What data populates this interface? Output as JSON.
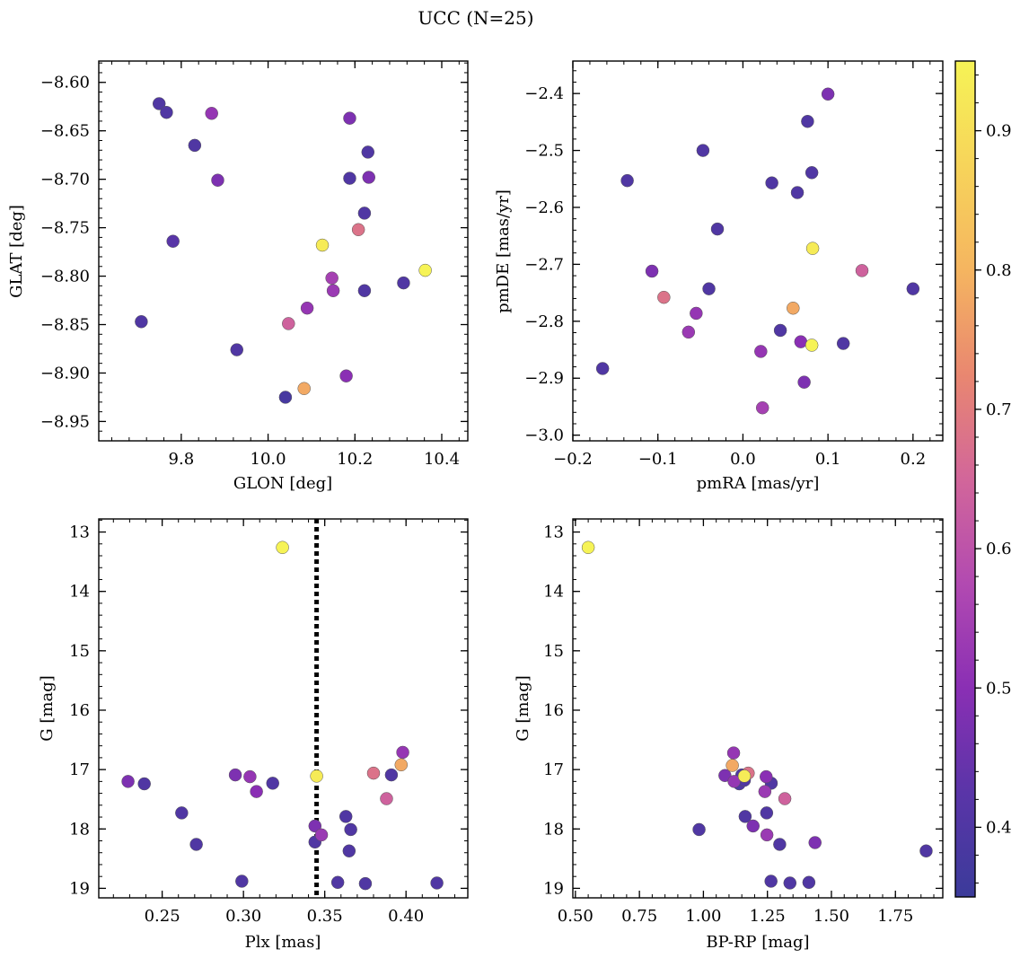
{
  "figure": {
    "title": "UCC (N=25)"
  },
  "colorbar": {
    "min": 0.35,
    "max": 0.95,
    "ticks": [
      "0.4",
      "0.5",
      "0.6",
      "0.7",
      "0.8",
      "0.9"
    ],
    "stops": [
      "#3b3b9a",
      "#5a35a8",
      "#8a2fb4",
      "#b24ab1",
      "#d2669a",
      "#e98770",
      "#f5b560",
      "#f7d45a",
      "#f6f356"
    ]
  },
  "chart_data": [
    {
      "type": "scatter",
      "id": "a",
      "xlabel": "GLON [deg]",
      "ylabel": "GLAT [deg]",
      "xlim": [
        9.61,
        10.46
      ],
      "ylim": [
        -8.97,
        -8.578
      ],
      "yinvert": false,
      "xticks": [
        "9.8",
        "10.0",
        "10.2",
        "10.4"
      ],
      "yticks": [
        "-8.60",
        "-8.65",
        "-8.70",
        "-8.75",
        "-8.80",
        "-8.85",
        "-8.90",
        "-8.95"
      ],
      "points": [
        {
          "x": 9.749,
          "y": -8.622,
          "c": 0.4
        },
        {
          "x": 9.766,
          "y": -8.631,
          "c": 0.4
        },
        {
          "x": 9.831,
          "y": -8.665,
          "c": 0.4
        },
        {
          "x": 9.87,
          "y": -8.632,
          "c": 0.52
        },
        {
          "x": 9.884,
          "y": -8.701,
          "c": 0.48
        },
        {
          "x": 9.781,
          "y": -8.764,
          "c": 0.42
        },
        {
          "x": 9.708,
          "y": -8.847,
          "c": 0.4
        },
        {
          "x": 9.928,
          "y": -8.876,
          "c": 0.4
        },
        {
          "x": 10.04,
          "y": -8.925,
          "c": 0.38
        },
        {
          "x": 10.047,
          "y": -8.849,
          "c": 0.64
        },
        {
          "x": 10.083,
          "y": -8.916,
          "c": 0.78
        },
        {
          "x": 10.09,
          "y": -8.833,
          "c": 0.52
        },
        {
          "x": 10.125,
          "y": -8.768,
          "c": 0.93
        },
        {
          "x": 10.147,
          "y": -8.802,
          "c": 0.55
        },
        {
          "x": 10.15,
          "y": -8.815,
          "c": 0.53
        },
        {
          "x": 10.18,
          "y": -8.903,
          "c": 0.5
        },
        {
          "x": 10.188,
          "y": -8.637,
          "c": 0.48
        },
        {
          "x": 10.188,
          "y": -8.699,
          "c": 0.4
        },
        {
          "x": 10.208,
          "y": -8.752,
          "c": 0.68
        },
        {
          "x": 10.222,
          "y": -8.735,
          "c": 0.4
        },
        {
          "x": 10.222,
          "y": -8.815,
          "c": 0.4
        },
        {
          "x": 10.23,
          "y": -8.672,
          "c": 0.4
        },
        {
          "x": 10.232,
          "y": -8.698,
          "c": 0.48
        },
        {
          "x": 10.312,
          "y": -8.807,
          "c": 0.4
        },
        {
          "x": 10.362,
          "y": -8.794,
          "c": 0.95
        }
      ]
    },
    {
      "type": "scatter",
      "id": "b",
      "xlabel": "pmRA [mas/yr]",
      "ylabel": "pmDE [mas/yr]",
      "xlim": [
        -0.2,
        0.235
      ],
      "ylim": [
        -3.01,
        -2.343
      ],
      "yinvert": false,
      "xticks": [
        "-0.2",
        "-0.1",
        "0.0",
        "0.1",
        "0.2"
      ],
      "yticks": [
        "-2.4",
        "-2.5",
        "-2.6",
        "-2.7",
        "-2.8",
        "-2.9",
        "-3.0"
      ],
      "points": [
        {
          "x": 0.1,
          "y": -2.401,
          "c": 0.48
        },
        {
          "x": 0.076,
          "y": -2.449,
          "c": 0.4
        },
        {
          "x": -0.047,
          "y": -2.5,
          "c": 0.4
        },
        {
          "x": -0.136,
          "y": -2.553,
          "c": 0.4
        },
        {
          "x": 0.034,
          "y": -2.557,
          "c": 0.4
        },
        {
          "x": 0.081,
          "y": -2.539,
          "c": 0.4
        },
        {
          "x": 0.064,
          "y": -2.574,
          "c": 0.4
        },
        {
          "x": -0.03,
          "y": -2.638,
          "c": 0.4
        },
        {
          "x": 0.082,
          "y": -2.672,
          "c": 0.93
        },
        {
          "x": -0.107,
          "y": -2.712,
          "c": 0.48
        },
        {
          "x": 0.14,
          "y": -2.711,
          "c": 0.64
        },
        {
          "x": -0.093,
          "y": -2.758,
          "c": 0.68
        },
        {
          "x": -0.04,
          "y": -2.743,
          "c": 0.4
        },
        {
          "x": 0.2,
          "y": -2.743,
          "c": 0.4
        },
        {
          "x": 0.059,
          "y": -2.777,
          "c": 0.78
        },
        {
          "x": -0.055,
          "y": -2.786,
          "c": 0.52
        },
        {
          "x": -0.064,
          "y": -2.819,
          "c": 0.53
        },
        {
          "x": 0.044,
          "y": -2.816,
          "c": 0.4
        },
        {
          "x": 0.068,
          "y": -2.836,
          "c": 0.5
        },
        {
          "x": 0.118,
          "y": -2.839,
          "c": 0.4
        },
        {
          "x": 0.081,
          "y": -2.842,
          "c": 0.95
        },
        {
          "x": 0.021,
          "y": -2.853,
          "c": 0.52
        },
        {
          "x": -0.165,
          "y": -2.883,
          "c": 0.4
        },
        {
          "x": 0.072,
          "y": -2.907,
          "c": 0.48
        },
        {
          "x": 0.023,
          "y": -2.952,
          "c": 0.55
        }
      ]
    },
    {
      "type": "scatter",
      "id": "c",
      "xlabel": "Plx [mas]",
      "ylabel": "G [mag]",
      "xlim": [
        0.211,
        0.438
      ],
      "ylim": [
        12.78,
        19.16
      ],
      "yinvert": true,
      "vline": 0.345,
      "xticks": [
        "0.25",
        "0.30",
        "0.35",
        "0.40"
      ],
      "yticks": [
        "13",
        "14",
        "15",
        "16",
        "17",
        "18",
        "19"
      ],
      "points": [
        {
          "x": 0.324,
          "y": 13.26,
          "c": 0.95
        },
        {
          "x": 0.229,
          "y": 17.2,
          "c": 0.48
        },
        {
          "x": 0.239,
          "y": 17.24,
          "c": 0.4
        },
        {
          "x": 0.262,
          "y": 17.73,
          "c": 0.4
        },
        {
          "x": 0.271,
          "y": 18.26,
          "c": 0.4
        },
        {
          "x": 0.295,
          "y": 17.09,
          "c": 0.48
        },
        {
          "x": 0.304,
          "y": 17.12,
          "c": 0.52
        },
        {
          "x": 0.308,
          "y": 17.37,
          "c": 0.5
        },
        {
          "x": 0.318,
          "y": 17.23,
          "c": 0.4
        },
        {
          "x": 0.299,
          "y": 18.88,
          "c": 0.4
        },
        {
          "x": 0.345,
          "y": 17.11,
          "c": 0.93
        },
        {
          "x": 0.344,
          "y": 17.95,
          "c": 0.48
        },
        {
          "x": 0.348,
          "y": 18.1,
          "c": 0.53
        },
        {
          "x": 0.344,
          "y": 18.22,
          "c": 0.4
        },
        {
          "x": 0.363,
          "y": 17.79,
          "c": 0.4
        },
        {
          "x": 0.366,
          "y": 18.01,
          "c": 0.4
        },
        {
          "x": 0.365,
          "y": 18.37,
          "c": 0.4
        },
        {
          "x": 0.358,
          "y": 18.9,
          "c": 0.4
        },
        {
          "x": 0.375,
          "y": 18.92,
          "c": 0.4
        },
        {
          "x": 0.38,
          "y": 17.06,
          "c": 0.68
        },
        {
          "x": 0.388,
          "y": 17.49,
          "c": 0.64
        },
        {
          "x": 0.391,
          "y": 17.09,
          "c": 0.4
        },
        {
          "x": 0.397,
          "y": 16.92,
          "c": 0.78
        },
        {
          "x": 0.398,
          "y": 16.71,
          "c": 0.52
        },
        {
          "x": 0.419,
          "y": 18.91,
          "c": 0.4
        }
      ]
    },
    {
      "type": "scatter",
      "id": "d",
      "xlabel": "BP-RP [mag]",
      "ylabel": "G [mag]",
      "xlim": [
        0.49,
        1.935
      ],
      "ylim": [
        12.78,
        19.16
      ],
      "yinvert": true,
      "xticks": [
        "0.50",
        "0.75",
        "1.00",
        "1.25",
        "1.50",
        "1.75"
      ],
      "yticks": [
        "13",
        "14",
        "15",
        "16",
        "17",
        "18",
        "19"
      ],
      "points": [
        {
          "x": 0.55,
          "y": 13.26,
          "c": 0.95
        },
        {
          "x": 1.118,
          "y": 16.72,
          "c": 0.52
        },
        {
          "x": 1.113,
          "y": 16.93,
          "c": 0.78
        },
        {
          "x": 1.084,
          "y": 17.1,
          "c": 0.48
        },
        {
          "x": 1.15,
          "y": 17.09,
          "c": 0.4
        },
        {
          "x": 1.175,
          "y": 17.06,
          "c": 0.68
        },
        {
          "x": 1.12,
          "y": 17.2,
          "c": 0.52
        },
        {
          "x": 1.14,
          "y": 17.24,
          "c": 0.4
        },
        {
          "x": 1.245,
          "y": 17.12,
          "c": 0.5
        },
        {
          "x": 1.265,
          "y": 17.23,
          "c": 0.4
        },
        {
          "x": 1.16,
          "y": 17.11,
          "c": 0.93
        },
        {
          "x": 1.24,
          "y": 17.37,
          "c": 0.53
        },
        {
          "x": 1.318,
          "y": 17.49,
          "c": 0.64
        },
        {
          "x": 1.247,
          "y": 17.73,
          "c": 0.4
        },
        {
          "x": 1.163,
          "y": 17.79,
          "c": 0.4
        },
        {
          "x": 1.194,
          "y": 17.95,
          "c": 0.48
        },
        {
          "x": 0.983,
          "y": 18.01,
          "c": 0.4
        },
        {
          "x": 1.248,
          "y": 18.1,
          "c": 0.53
        },
        {
          "x": 1.298,
          "y": 18.26,
          "c": 0.4
        },
        {
          "x": 1.436,
          "y": 18.23,
          "c": 0.48
        },
        {
          "x": 1.87,
          "y": 18.37,
          "c": 0.4
        },
        {
          "x": 1.264,
          "y": 18.88,
          "c": 0.4
        },
        {
          "x": 1.338,
          "y": 18.91,
          "c": 0.4
        },
        {
          "x": 1.412,
          "y": 18.9,
          "c": 0.4
        },
        {
          "x": 1.16,
          "y": 17.18,
          "c": 0.4
        }
      ]
    }
  ]
}
